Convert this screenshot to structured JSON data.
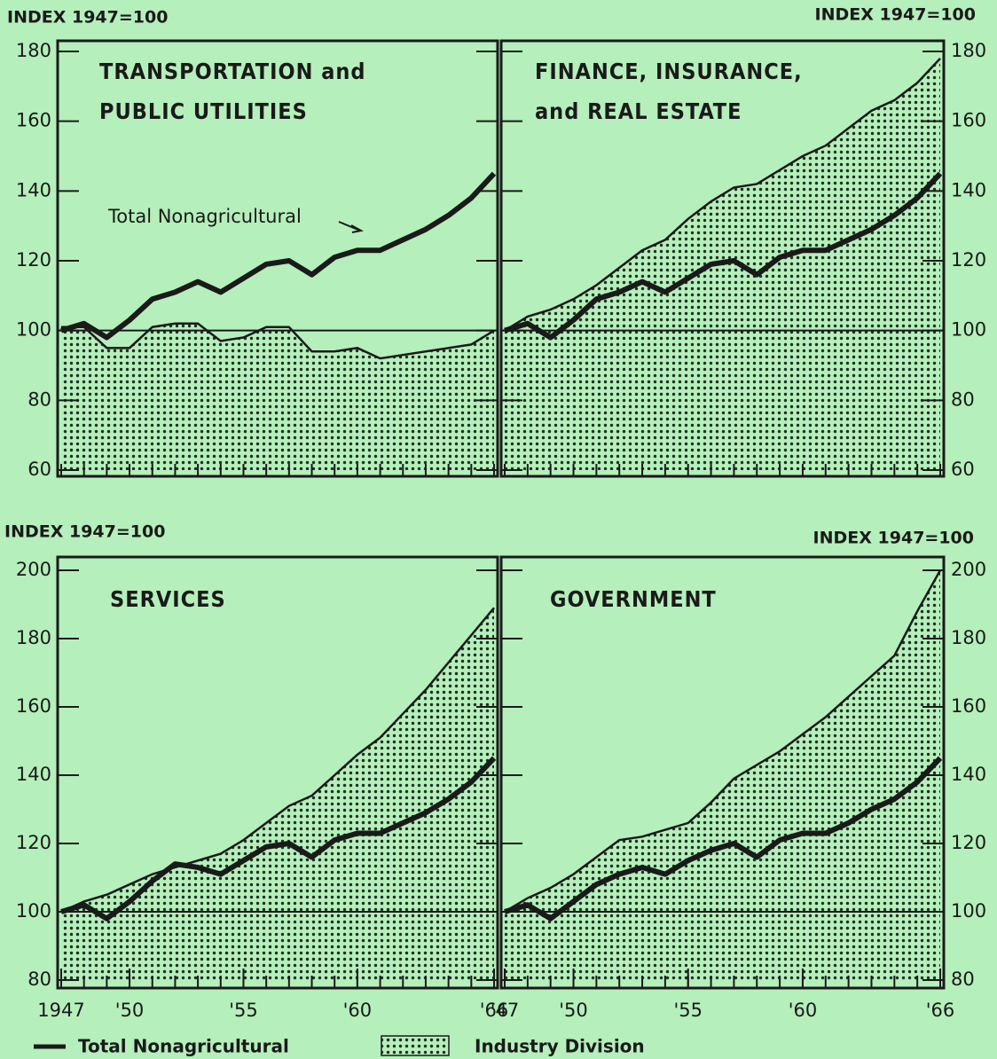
{
  "chart_data": [
    {
      "type": "line",
      "title": [
        "TRANSPORTATION and",
        "PUBLIC UTILITIES"
      ],
      "y_label": "INDEX 1947=100",
      "y_axis_side": "left",
      "annotation": "Total Nonagricultural",
      "x": [
        1947,
        1948,
        1949,
        1950,
        1951,
        1952,
        1953,
        1954,
        1955,
        1956,
        1957,
        1958,
        1959,
        1960,
        1961,
        1962,
        1963,
        1964,
        1965,
        1966
      ],
      "xlim": [
        1947,
        1966
      ],
      "ylim": [
        60,
        180
      ],
      "yticks": [
        60,
        80,
        100,
        120,
        140,
        160,
        180
      ],
      "reference": 100,
      "series": [
        {
          "name": "Total Nonagricultural",
          "color": "#1a1a1a",
          "values": [
            100,
            102,
            98,
            103,
            109,
            111,
            114,
            111,
            115,
            119,
            120,
            116,
            121,
            123,
            123,
            126,
            129,
            133,
            138,
            145
          ]
        },
        {
          "name": "Industry Division",
          "color": "#1a1a1a",
          "area": true,
          "values": [
            101,
            101,
            95,
            95,
            101,
            102,
            102,
            97,
            98,
            101,
            101,
            94,
            94,
            95,
            92,
            93,
            94,
            95,
            96,
            100
          ]
        }
      ]
    },
    {
      "type": "line",
      "title": [
        "FINANCE, INSURANCE,",
        "and REAL ESTATE"
      ],
      "y_label": "INDEX 1947=100",
      "y_axis_side": "right",
      "x": [
        1947,
        1948,
        1949,
        1950,
        1951,
        1952,
        1953,
        1954,
        1955,
        1956,
        1957,
        1958,
        1959,
        1960,
        1961,
        1962,
        1963,
        1964,
        1965,
        1966
      ],
      "xlim": [
        1947,
        1966
      ],
      "ylim": [
        60,
        180
      ],
      "yticks": [
        60,
        80,
        100,
        120,
        140,
        160,
        180
      ],
      "reference": 100,
      "series": [
        {
          "color": "#1a1a1a",
          "values": [
            100,
            102,
            98,
            103,
            109,
            111,
            114,
            111,
            115,
            119,
            120,
            116,
            121,
            123,
            123,
            126,
            129,
            133,
            138,
            145
          ]
        },
        {
          "color": "#1a1a1a",
          "area": true,
          "values": [
            100,
            104,
            106,
            109,
            113,
            118,
            123,
            126,
            132,
            137,
            141,
            142,
            146,
            150,
            153,
            158,
            163,
            166,
            171,
            178
          ]
        }
      ]
    },
    {
      "type": "line",
      "title": [
        "SERVICES"
      ],
      "y_label": "INDEX 1947=100",
      "y_axis_side": "left",
      "x": [
        1947,
        1948,
        1949,
        1950,
        1951,
        1952,
        1953,
        1954,
        1955,
        1956,
        1957,
        1958,
        1959,
        1960,
        1961,
        1962,
        1963,
        1964,
        1965,
        1966
      ],
      "xlim": [
        1947,
        1966
      ],
      "ylim": [
        80,
        200
      ],
      "yticks": [
        80,
        100,
        120,
        140,
        160,
        180,
        200
      ],
      "reference": 100,
      "xticks": [
        {
          "value": 1947,
          "label": "1947"
        },
        {
          "value": 1950,
          "label": "'50"
        },
        {
          "value": 1955,
          "label": "'55"
        },
        {
          "value": 1960,
          "label": "'60"
        },
        {
          "value": 1966,
          "label": "'66"
        }
      ],
      "series": [
        {
          "color": "#1a1a1a",
          "values": [
            100,
            102,
            98,
            103,
            109,
            114,
            113,
            111,
            115,
            119,
            120,
            116,
            121,
            123,
            123,
            126,
            129,
            133,
            138,
            145
          ]
        },
        {
          "color": "#1a1a1a",
          "area": true,
          "values": [
            100,
            103,
            105,
            108,
            111,
            113,
            115,
            117,
            121,
            126,
            131,
            134,
            140,
            146,
            151,
            158,
            165,
            173,
            181,
            189
          ]
        }
      ]
    },
    {
      "type": "line",
      "title": [
        "GOVERNMENT"
      ],
      "y_label": "INDEX 1947=100",
      "y_axis_side": "right",
      "x": [
        1947,
        1948,
        1949,
        1950,
        1951,
        1952,
        1953,
        1954,
        1955,
        1956,
        1957,
        1958,
        1959,
        1960,
        1961,
        1962,
        1963,
        1964,
        1965,
        1966
      ],
      "xlim": [
        1947,
        1966
      ],
      "ylim": [
        80,
        200
      ],
      "yticks": [
        80,
        100,
        120,
        140,
        160,
        180,
        200
      ],
      "reference": 100,
      "xticks": [
        {
          "value": 1947,
          "label": "'47"
        },
        {
          "value": 1950,
          "label": "'50"
        },
        {
          "value": 1955,
          "label": "'55"
        },
        {
          "value": 1960,
          "label": "'60"
        },
        {
          "value": 1966,
          "label": "'66"
        }
      ],
      "series": [
        {
          "color": "#1a1a1a",
          "values": [
            100,
            102,
            98,
            103,
            108,
            111,
            113,
            111,
            115,
            118,
            120,
            116,
            121,
            123,
            123,
            126,
            130,
            133,
            138,
            145
          ]
        },
        {
          "color": "#1a1a1a",
          "area": true,
          "values": [
            100,
            104,
            107,
            111,
            116,
            121,
            122,
            124,
            126,
            132,
            139,
            143,
            147,
            152,
            157,
            163,
            169,
            175,
            188,
            200
          ]
        }
      ]
    }
  ]
}
